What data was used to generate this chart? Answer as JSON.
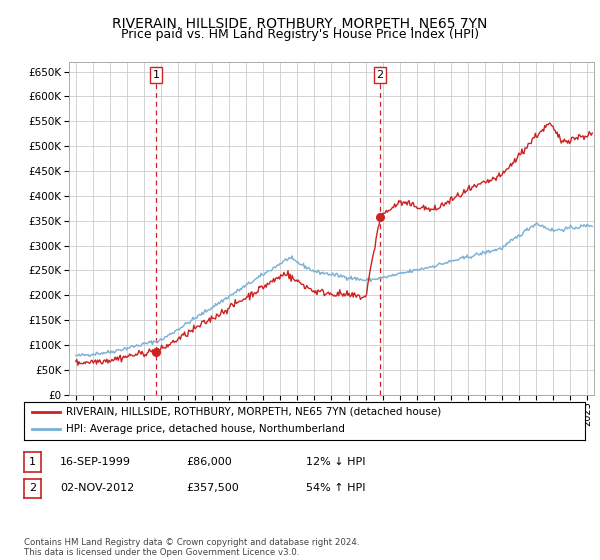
{
  "title": "RIVERAIN, HILLSIDE, ROTHBURY, MORPETH, NE65 7YN",
  "subtitle": "Price paid vs. HM Land Registry's House Price Index (HPI)",
  "ylim": [
    0,
    670000
  ],
  "yticks": [
    0,
    50000,
    100000,
    150000,
    200000,
    250000,
    300000,
    350000,
    400000,
    450000,
    500000,
    550000,
    600000,
    650000
  ],
  "xlim_start": 1994.6,
  "xlim_end": 2025.4,
  "background_color": "#ffffff",
  "grid_color": "#cccccc",
  "hpi_color": "#7ab0d4",
  "sale_color": "#cc2222",
  "dashed_line_color": "#cc2222",
  "transaction1": {
    "date_num": 1999.71,
    "price": 86000,
    "label": "1",
    "date_str": "16-SEP-1999",
    "pct": "12%",
    "dir": "↓"
  },
  "transaction2": {
    "date_num": 2012.84,
    "price": 357500,
    "label": "2",
    "date_str": "02-NOV-2012",
    "pct": "54%",
    "dir": "↑"
  },
  "legend_line1": "RIVERAIN, HILLSIDE, ROTHBURY, MORPETH, NE65 7YN (detached house)",
  "legend_line2": "HPI: Average price, detached house, Northumberland",
  "footnote": "Contains HM Land Registry data © Crown copyright and database right 2024.\nThis data is licensed under the Open Government Licence v3.0.",
  "title_fontsize": 10,
  "subtitle_fontsize": 9
}
